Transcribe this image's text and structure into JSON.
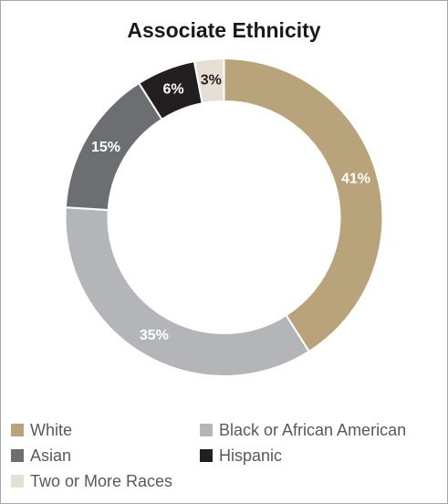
{
  "chart_data": {
    "type": "pie",
    "variant": "donut",
    "title": "Associate Ethnicity",
    "slices": [
      {
        "name": "White",
        "value": 41,
        "label": "41%",
        "color": "#b8a37a",
        "label_color": "#ffffff"
      },
      {
        "name": "Black or African American",
        "value": 35,
        "label": "35%",
        "color": "#b4b5b8",
        "label_color": "#ffffff"
      },
      {
        "name": "Asian",
        "value": 15,
        "label": "15%",
        "color": "#6d6e71",
        "label_color": "#ffffff"
      },
      {
        "name": "Hispanic",
        "value": 6,
        "label": "6%",
        "color": "#231f20",
        "label_color": "#ffffff"
      },
      {
        "name": "Two or More Races",
        "value": 3,
        "label": "3%",
        "color": "#e6dfd3",
        "label_color": "#231f20"
      }
    ],
    "legend": {
      "position": "bottom",
      "entries": [
        "White",
        "Black or African American",
        "Asian",
        "Hispanic",
        "Two or More Races"
      ]
    }
  }
}
